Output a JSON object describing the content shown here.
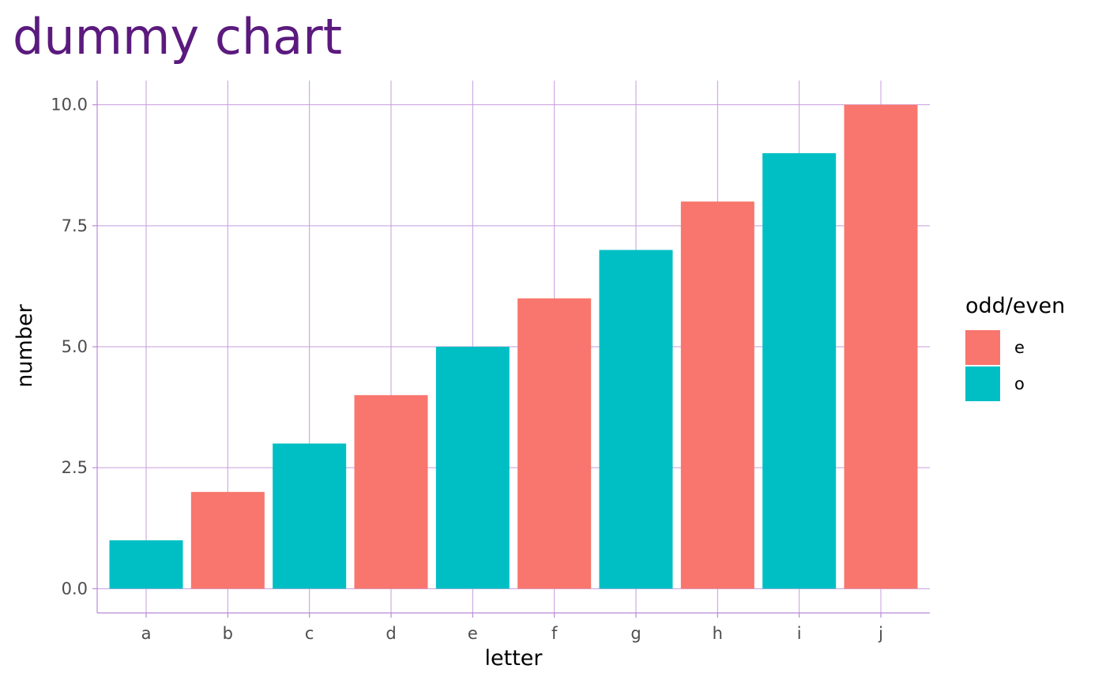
{
  "colors": {
    "title": "#5b1a7e",
    "grid": "#c79bde",
    "axis_line": "#b98ad4",
    "even": "#f8766d",
    "odd": "#00bfc4"
  },
  "chart_data": {
    "type": "bar",
    "title": "dummy chart",
    "xlabel": "letter",
    "ylabel": "number",
    "categories": [
      "a",
      "b",
      "c",
      "d",
      "e",
      "f",
      "g",
      "h",
      "i",
      "j"
    ],
    "values": [
      1,
      2,
      3,
      4,
      5,
      6,
      7,
      8,
      9,
      10
    ],
    "groups": [
      "o",
      "e",
      "o",
      "e",
      "o",
      "e",
      "o",
      "e",
      "o",
      "e"
    ],
    "ylim": [
      -0.5,
      10.5
    ],
    "yticks": [
      0,
      2.5,
      5,
      7.5,
      10
    ],
    "ytick_labels": [
      "0.0",
      "2.5",
      "5.0",
      "7.5",
      "10.0"
    ],
    "grid": true,
    "legend": {
      "title": "odd/even",
      "placement": "right",
      "entries": [
        {
          "key": "e",
          "label": "e",
          "color": "#f8766d"
        },
        {
          "key": "o",
          "label": "o",
          "color": "#00bfc4"
        }
      ]
    }
  }
}
